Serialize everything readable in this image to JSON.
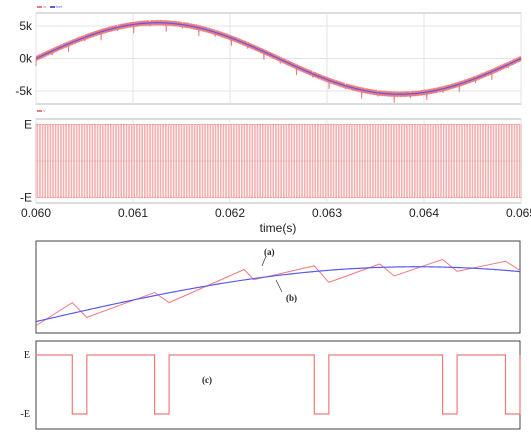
{
  "colors": {
    "red": "#f07a7a",
    "blue": "#5a5aee",
    "grid": "#e3e3e3",
    "frame": "#b8b8b8",
    "frame_dark": "#444444"
  },
  "chart_data": [
    {
      "type": "line",
      "panel": "top-current",
      "legend": [
        "Ia",
        "Iref"
      ],
      "legend_placement": "top-left",
      "yticks": [
        "5k",
        "0k",
        "-5k"
      ],
      "ytick_values": [
        5000,
        0,
        -5000
      ],
      "ylim": [
        -7000,
        7000
      ],
      "xlim": [
        0.06,
        0.065
      ],
      "grid": true,
      "series": [
        {
          "name": "Ia",
          "color": "red",
          "description_of_shape": "sinusoid with dense switching ripple",
          "amplitude": 5500,
          "period": 0.005,
          "phase_peak_x": 0.06125
        },
        {
          "name": "Iref",
          "color": "blue",
          "amplitude": 5500,
          "period": 0.005,
          "phase_peak_x": 0.06125
        }
      ]
    },
    {
      "type": "line",
      "panel": "top-voltage",
      "legend": [
        "V"
      ],
      "legend_placement": "top-left",
      "yticks": [
        "E",
        "-E"
      ],
      "ytick_values": [
        1,
        -1
      ],
      "ylim": [
        -1.15,
        1.15
      ],
      "xlim": [
        0.06,
        0.065
      ],
      "grid": true,
      "xticks": [
        "0.060",
        "0.061",
        "0.062",
        "0.063",
        "0.064",
        "0.065"
      ],
      "xtick_values": [
        0.06,
        0.061,
        0.062,
        0.063,
        0.064,
        0.065
      ],
      "xlabel": "time(s)",
      "series": [
        {
          "name": "V",
          "color": "red",
          "description_of_shape": "high-frequency PWM switching between E and -E"
        }
      ]
    },
    {
      "type": "line",
      "panel": "zoom-current",
      "annotations": [
        "(a)",
        "(b)"
      ],
      "grid": false,
      "series": [
        {
          "name": "(a)",
          "color": "blue",
          "description_of_shape": "smooth rising reference arc"
        },
        {
          "name": "(b)",
          "color": "red",
          "description_of_shape": "sawtooth tracking the reference"
        }
      ]
    },
    {
      "type": "line",
      "panel": "zoom-voltage",
      "yticks": [
        "E",
        "-E"
      ],
      "ytick_values": [
        1,
        -1
      ],
      "annotations": [
        "(c)"
      ],
      "grid": false,
      "series": [
        {
          "name": "(c)",
          "color": "red",
          "description_of_shape": "switching pulses between E and -E",
          "low_intervals": [
            [
              0.075,
              0.105
            ],
            [
              0.245,
              0.275
            ],
            [
              0.575,
              0.605
            ],
            [
              0.84,
              0.87
            ],
            [
              0.97,
              1.0
            ]
          ]
        }
      ]
    }
  ]
}
